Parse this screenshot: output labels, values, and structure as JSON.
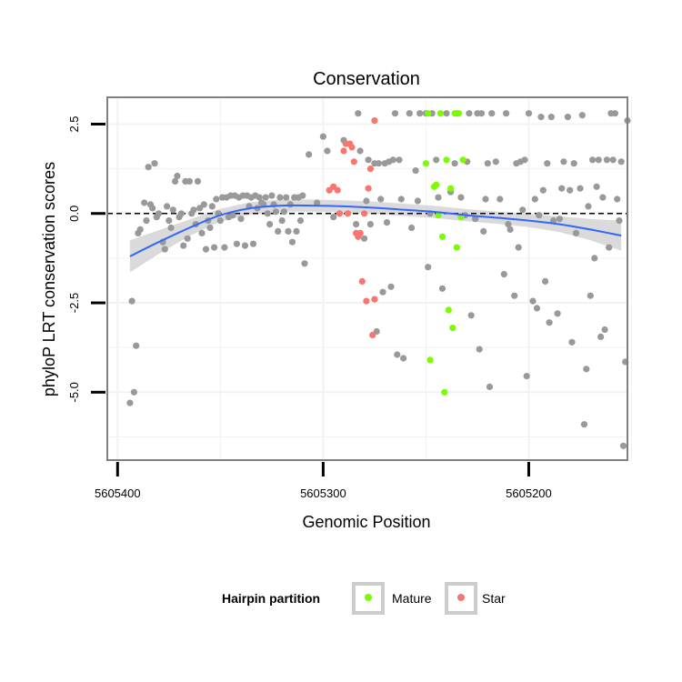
{
  "chart_data": {
    "type": "scatter",
    "title": "Conservation",
    "xlabel": "Genomic Position",
    "ylabel": "phyloP LRT conservation scores",
    "x_reversed": true,
    "xlim": [
      5605405,
      5605152
    ],
    "ylim": [
      -6.9,
      3.25
    ],
    "x_ticks": [
      5605400,
      5605300,
      5605200
    ],
    "x_tick_labels": [
      "5605400",
      "5605300",
      "5605200"
    ],
    "y_ticks": [
      2.5,
      0.0,
      -2.5,
      -5.0
    ],
    "y_tick_labels": [
      "2.5",
      "0.0",
      "-2.5",
      "-5.0"
    ],
    "reference_line": {
      "y": 0,
      "style": "dashed",
      "color": "#000000"
    },
    "grid": true,
    "legend": {
      "title": "Hairpin partition",
      "position": "bottom",
      "entries": [
        {
          "label": "Mature",
          "color": "#7CFC00"
        },
        {
          "label": "Star",
          "color": "#F8766D"
        }
      ]
    },
    "colors": {
      "other": "#999999",
      "mature": "#7CFC00",
      "star": "#F8766D",
      "smooth": "#3366FF",
      "ribbon": "#d6d6d6",
      "panel_border": "#808080",
      "grid": "#f2f2f2"
    },
    "series": [
      {
        "name": "",
        "points": [
          [
            5605394,
            -5.3
          ],
          [
            5605393,
            -2.45
          ],
          [
            5605392,
            -5.0
          ],
          [
            5605391,
            -3.7
          ],
          [
            5605390,
            -0.55
          ],
          [
            5605389,
            -0.45
          ],
          [
            5605387,
            0.3
          ],
          [
            5605386,
            -0.2
          ],
          [
            5605385,
            1.3
          ],
          [
            5605384,
            0.25
          ],
          [
            5605383,
            0.15
          ],
          [
            5605382,
            1.4
          ],
          [
            5605381,
            -0.1
          ],
          [
            5605380,
            0.0
          ],
          [
            5605378,
            -0.8
          ],
          [
            5605377,
            -1.0
          ],
          [
            5605376,
            0.2
          ],
          [
            5605375,
            -0.2
          ],
          [
            5605374,
            -0.4
          ],
          [
            5605373,
            0.1
          ],
          [
            5605372,
            0.9
          ],
          [
            5605371,
            1.05
          ],
          [
            5605370,
            -0.1
          ],
          [
            5605369,
            0.0
          ],
          [
            5605368,
            -0.9
          ],
          [
            5605367,
            0.9
          ],
          [
            5605366,
            -0.7
          ],
          [
            5605365,
            0.9
          ],
          [
            5605364,
            0.0
          ],
          [
            5605363,
            0.1
          ],
          [
            5605362,
            -0.3
          ],
          [
            5605361,
            0.9
          ],
          [
            5605360,
            0.15
          ],
          [
            5605359,
            -0.55
          ],
          [
            5605358,
            0.25
          ],
          [
            5605357,
            -1.0
          ],
          [
            5605356,
            -0.2
          ],
          [
            5605355,
            -0.4
          ],
          [
            5605354,
            0.2
          ],
          [
            5605353,
            -0.95
          ],
          [
            5605352,
            0.4
          ],
          [
            5605351,
            0.0
          ],
          [
            5605350,
            -0.2
          ],
          [
            5605349,
            0.45
          ],
          [
            5605348,
            -0.95
          ],
          [
            5605347,
            0.45
          ],
          [
            5605346,
            -0.1
          ],
          [
            5605345,
            0.5
          ],
          [
            5605344,
            -0.05
          ],
          [
            5605343,
            0.5
          ],
          [
            5605342,
            -0.85
          ],
          [
            5605341,
            0.45
          ],
          [
            5605340,
            -0.15
          ],
          [
            5605339,
            0.5
          ],
          [
            5605338,
            -0.9
          ],
          [
            5605337,
            0.5
          ],
          [
            5605336,
            0.2
          ],
          [
            5605335,
            0.45
          ],
          [
            5605334,
            -0.85
          ],
          [
            5605333,
            0.5
          ],
          [
            5605332,
            0.15
          ],
          [
            5605331,
            0.45
          ],
          [
            5605330,
            0.3
          ],
          [
            5605329,
            0.25
          ],
          [
            5605328,
            0.45
          ],
          [
            5605327,
            0.0
          ],
          [
            5605326,
            -0.3
          ],
          [
            5605325,
            0.5
          ],
          [
            5605324,
            0.25
          ],
          [
            5605323,
            0.05
          ],
          [
            5605322,
            -0.5
          ],
          [
            5605321,
            0.45
          ],
          [
            5605320,
            -0.2
          ],
          [
            5605319,
            0.05
          ],
          [
            5605318,
            0.45
          ],
          [
            5605317,
            -0.5
          ],
          [
            5605316,
            0.25
          ],
          [
            5605315,
            -0.8
          ],
          [
            5605314,
            0.45
          ],
          [
            5605313,
            -0.5
          ],
          [
            5605312,
            0.45
          ],
          [
            5605311,
            -0.2
          ],
          [
            5605310,
            0.5
          ],
          [
            5605309,
            -1.4
          ],
          [
            5605307,
            1.65
          ],
          [
            5605303,
            0.3
          ],
          [
            5605300,
            2.15
          ],
          [
            5605298,
            1.75
          ],
          [
            5605295,
            -0.1
          ],
          [
            5605290,
            2.05
          ],
          [
            5605284,
            -0.3
          ],
          [
            5605283,
            2.8
          ],
          [
            5605282,
            1.75
          ],
          [
            5605280,
            -0.7
          ],
          [
            5605279,
            0.35
          ],
          [
            5605278,
            1.5
          ],
          [
            5605277,
            -0.3
          ],
          [
            5605275,
            1.4
          ],
          [
            5605274,
            -3.3
          ],
          [
            5605273,
            1.4
          ],
          [
            5605272,
            0.4
          ],
          [
            5605271,
            -2.2
          ],
          [
            5605270,
            1.4
          ],
          [
            5605269,
            -0.25
          ],
          [
            5605268,
            1.45
          ],
          [
            5605267,
            -2.05
          ],
          [
            5605266,
            1.5
          ],
          [
            5605265,
            2.8
          ],
          [
            5605264,
            -3.95
          ],
          [
            5605263,
            1.5
          ],
          [
            5605262,
            0.4
          ],
          [
            5605261,
            -4.05
          ],
          [
            5605258,
            2.8
          ],
          [
            5605257,
            -0.4
          ],
          [
            5605255,
            1.2
          ],
          [
            5605254,
            0.35
          ],
          [
            5605253,
            2.8
          ],
          [
            5605250,
            2.8
          ],
          [
            5605249,
            -1.5
          ],
          [
            5605248,
            0.0
          ],
          [
            5605247,
            2.8
          ],
          [
            5605245,
            1.5
          ],
          [
            5605244,
            0.45
          ],
          [
            5605242,
            -2.1
          ],
          [
            5605240,
            2.8
          ],
          [
            5605238,
            0.6
          ],
          [
            5605236,
            1.4
          ],
          [
            5605235,
            2.8
          ],
          [
            5605233,
            0.45
          ],
          [
            5605231,
            -0.05
          ],
          [
            5605230,
            1.45
          ],
          [
            5605229,
            2.8
          ],
          [
            5605228,
            -2.85
          ],
          [
            5605226,
            -0.15
          ],
          [
            5605225,
            2.8
          ],
          [
            5605224,
            -3.8
          ],
          [
            5605223,
            2.8
          ],
          [
            5605222,
            -0.5
          ],
          [
            5605221,
            0.4
          ],
          [
            5605220,
            1.4
          ],
          [
            5605219,
            -4.85
          ],
          [
            5605218,
            2.8
          ],
          [
            5605216,
            1.45
          ],
          [
            5605214,
            0.4
          ],
          [
            5605212,
            -1.7
          ],
          [
            5605211,
            2.8
          ],
          [
            5605210,
            -0.3
          ],
          [
            5605209,
            -0.45
          ],
          [
            5605207,
            -2.3
          ],
          [
            5605206,
            1.4
          ],
          [
            5605205,
            -0.95
          ],
          [
            5605204,
            1.45
          ],
          [
            5605203,
            0.1
          ],
          [
            5605202,
            1.5
          ],
          [
            5605201,
            -4.55
          ],
          [
            5605200,
            2.8
          ],
          [
            5605198,
            -2.45
          ],
          [
            5605197,
            0.4
          ],
          [
            5605196,
            -2.65
          ],
          [
            5605195,
            -0.05
          ],
          [
            5605194,
            2.7
          ],
          [
            5605193,
            0.65
          ],
          [
            5605192,
            -1.9
          ],
          [
            5605191,
            1.4
          ],
          [
            5605190,
            -3.05
          ],
          [
            5605189,
            2.7
          ],
          [
            5605188,
            -0.2
          ],
          [
            5605186,
            -2.8
          ],
          [
            5605185,
            -0.15
          ],
          [
            5605184,
            0.7
          ],
          [
            5605183,
            1.45
          ],
          [
            5605181,
            2.7
          ],
          [
            5605180,
            0.65
          ],
          [
            5605179,
            -3.6
          ],
          [
            5605178,
            1.4
          ],
          [
            5605177,
            -0.55
          ],
          [
            5605175,
            0.7
          ],
          [
            5605174,
            2.75
          ],
          [
            5605173,
            -5.9
          ],
          [
            5605172,
            -4.35
          ],
          [
            5605171,
            0.2
          ],
          [
            5605170,
            -2.3
          ],
          [
            5605169,
            1.5
          ],
          [
            5605168,
            -1.25
          ],
          [
            5605167,
            0.75
          ],
          [
            5605166,
            1.5
          ],
          [
            5605165,
            -3.45
          ],
          [
            5605164,
            0.45
          ],
          [
            5605163,
            -3.25
          ],
          [
            5605162,
            1.5
          ],
          [
            5605161,
            -0.95
          ],
          [
            5605160,
            2.8
          ],
          [
            5605159,
            1.5
          ],
          [
            5605158,
            2.8
          ],
          [
            5605157,
            0.4
          ],
          [
            5605156,
            -0.2
          ],
          [
            5605155,
            1.45
          ],
          [
            5605154,
            -6.5
          ],
          [
            5605153,
            -4.15
          ],
          [
            5605152,
            2.6
          ]
        ]
      },
      {
        "name": "Star",
        "points": [
          [
            5605297,
            0.65
          ],
          [
            5605295,
            0.75
          ],
          [
            5605293,
            0.65
          ],
          [
            5605292,
            0.0
          ],
          [
            5605290,
            1.75
          ],
          [
            5605289,
            1.95
          ],
          [
            5605288,
            0.0
          ],
          [
            5605287,
            1.95
          ],
          [
            5605286,
            1.85
          ],
          [
            5605285,
            1.45
          ],
          [
            5605284,
            -0.55
          ],
          [
            5605283,
            -0.65
          ],
          [
            5605282,
            -0.55
          ],
          [
            5605281,
            -1.9
          ],
          [
            5605280,
            0.0
          ],
          [
            5605279,
            -2.45
          ],
          [
            5605278,
            0.7
          ],
          [
            5605277,
            1.25
          ],
          [
            5605276,
            -3.4
          ],
          [
            5605275,
            -2.4
          ],
          [
            5605275,
            2.6
          ]
        ]
      },
      {
        "name": "Mature",
        "points": [
          [
            5605250,
            1.4
          ],
          [
            5605249,
            2.8
          ],
          [
            5605248,
            -4.1
          ],
          [
            5605246,
            0.75
          ],
          [
            5605245,
            0.8
          ],
          [
            5605244,
            -0.05
          ],
          [
            5605243,
            2.8
          ],
          [
            5605242,
            -0.65
          ],
          [
            5605241,
            -5.0
          ],
          [
            5605240,
            1.5
          ],
          [
            5605239,
            -2.7
          ],
          [
            5605238,
            0.7
          ],
          [
            5605237,
            -3.2
          ],
          [
            5605236,
            2.8
          ],
          [
            5605235,
            -0.95
          ],
          [
            5605234,
            2.8
          ],
          [
            5605233,
            -0.1
          ],
          [
            5605232,
            1.5
          ]
        ]
      }
    ],
    "smooth": {
      "method": "loess",
      "x": [
        5605394,
        5605380,
        5605365,
        5605350,
        5605335,
        5605320,
        5605305,
        5605290,
        5605275,
        5605260,
        5605245,
        5605230,
        5605215,
        5605200,
        5605185,
        5605170,
        5605155
      ],
      "y": [
        -1.2,
        -0.8,
        -0.4,
        -0.05,
        0.15,
        0.22,
        0.22,
        0.2,
        0.16,
        0.1,
        0.04,
        -0.05,
        -0.12,
        -0.2,
        -0.3,
        -0.45,
        -0.62
      ],
      "se": [
        0.45,
        0.33,
        0.23,
        0.18,
        0.17,
        0.17,
        0.17,
        0.17,
        0.17,
        0.17,
        0.17,
        0.17,
        0.17,
        0.18,
        0.22,
        0.3,
        0.42
      ]
    }
  }
}
